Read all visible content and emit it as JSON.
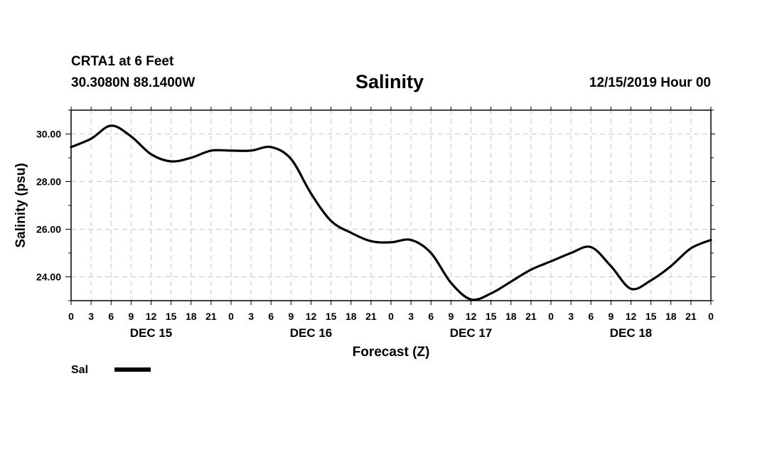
{
  "header": {
    "station": "CRTA1 at 6 Feet",
    "coords": "30.3080N 88.1400W",
    "title": "Salinity",
    "datetime": "12/15/2019 Hour 00"
  },
  "chart_data": {
    "type": "line",
    "title": "Salinity",
    "xlabel": "Forecast (Z)",
    "ylabel": "Salinity (psu)",
    "x_units": "hours since 12/15/2019 00Z",
    "xlim": [
      0,
      96
    ],
    "ylim": [
      23.0,
      31.0
    ],
    "grid": true,
    "x_tick_hours": [
      0,
      3,
      6,
      9,
      12,
      15,
      18,
      21,
      24,
      27,
      30,
      33,
      36,
      39,
      42,
      45,
      48,
      51,
      54,
      57,
      60,
      63,
      66,
      69,
      72,
      75,
      78,
      81,
      84,
      87,
      90,
      93,
      96
    ],
    "x_tick_labels": [
      "0",
      "3",
      "6",
      "9",
      "12",
      "15",
      "18",
      "21",
      "0",
      "3",
      "6",
      "9",
      "12",
      "15",
      "18",
      "21",
      "0",
      "3",
      "6",
      "9",
      "12",
      "15",
      "18",
      "21",
      "0",
      "3",
      "6",
      "9",
      "12",
      "15",
      "18",
      "21",
      "0"
    ],
    "y_ticks": [
      24,
      26,
      28,
      30
    ],
    "y_tick_labels": [
      "24.00",
      "26.00",
      "28.00",
      "30.00"
    ],
    "day_labels": [
      {
        "label": "DEC 15",
        "hour": 12
      },
      {
        "label": "DEC 16",
        "hour": 36
      },
      {
        "label": "DEC 17",
        "hour": 60
      },
      {
        "label": "DEC 18",
        "hour": 84
      }
    ],
    "legend": {
      "label": "Sal",
      "position": "bottom-left"
    },
    "series": [
      {
        "name": "Sal",
        "x": [
          0,
          3,
          6,
          9,
          12,
          15,
          18,
          21,
          24,
          27,
          30,
          33,
          36,
          39,
          42,
          45,
          48,
          51,
          54,
          57,
          60,
          63,
          66,
          69,
          72,
          75,
          78,
          81,
          84,
          87,
          90,
          93,
          96
        ],
        "values": [
          29.45,
          29.8,
          30.35,
          29.9,
          29.15,
          28.85,
          29.0,
          29.3,
          29.3,
          29.3,
          29.45,
          28.95,
          27.5,
          26.35,
          25.85,
          25.5,
          25.45,
          25.55,
          25.0,
          23.75,
          23.05,
          23.3,
          23.8,
          24.3,
          24.65,
          25.0,
          25.25,
          24.45,
          23.5,
          23.85,
          24.45,
          25.2,
          25.55
        ]
      }
    ]
  }
}
